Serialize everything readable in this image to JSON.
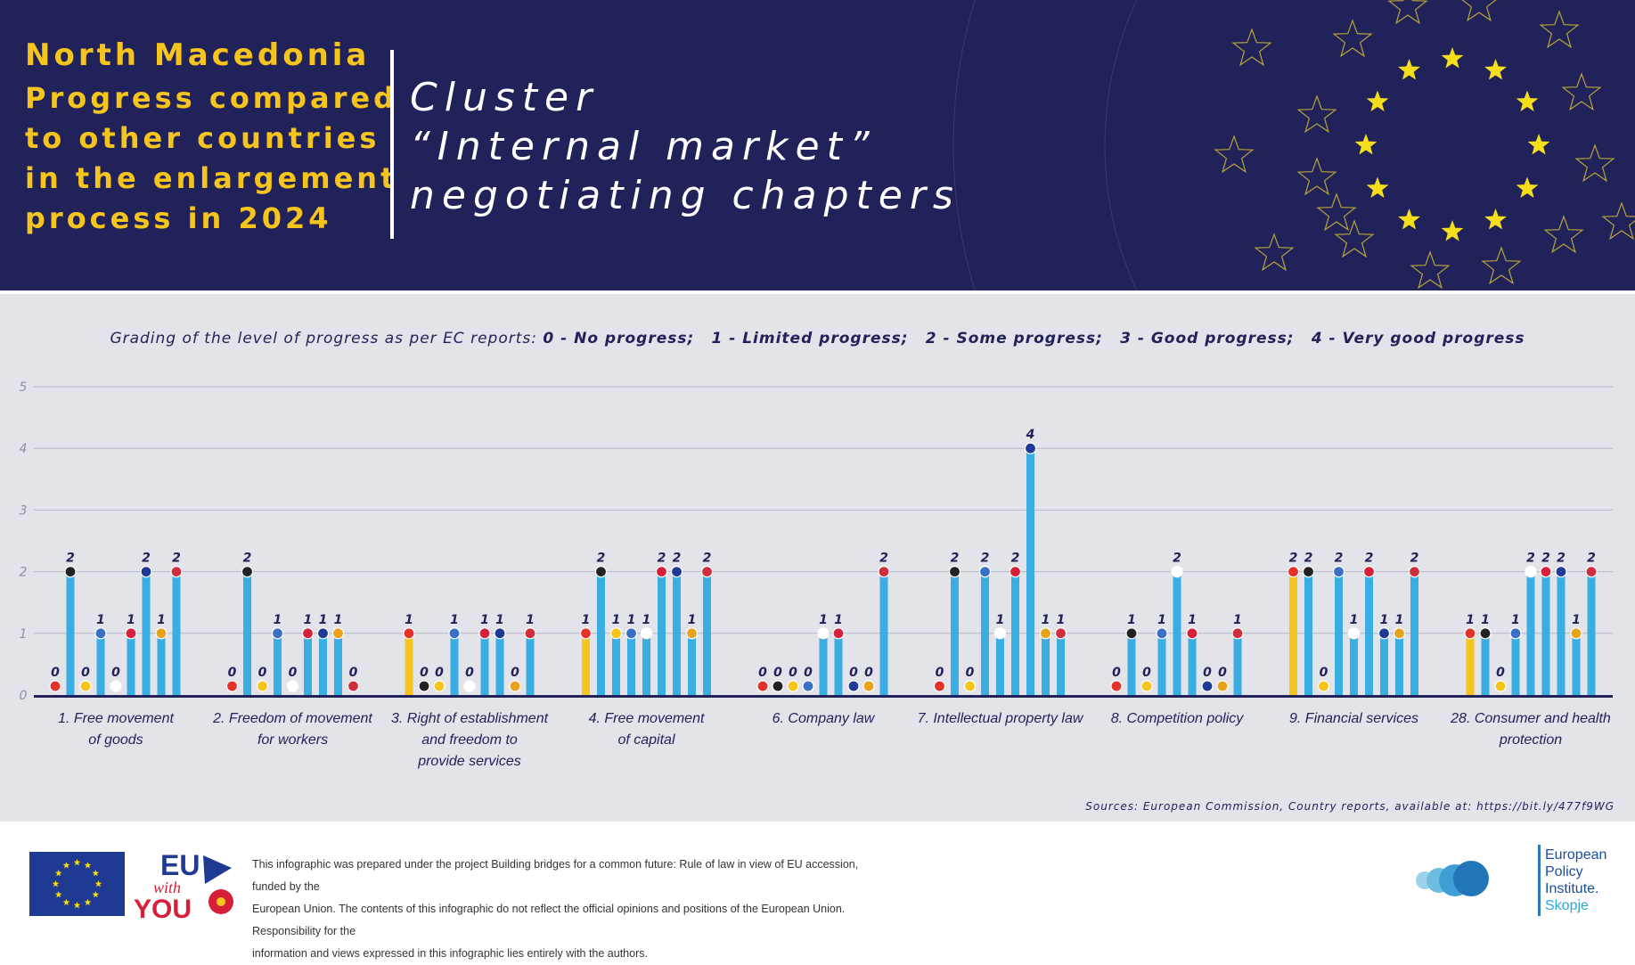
{
  "header": {
    "country": "North Macedonia",
    "subtitle_lines": [
      "Progress compared",
      "to other countries",
      "in the enlargement",
      "process in 2024"
    ],
    "cluster_lines": [
      "Cluster",
      "“Internal market”",
      "negotiating chapters"
    ]
  },
  "legend": {
    "prefix": "Grading of the level of progress as per EC reports:",
    "grades": [
      "0 - No progress;",
      "1 - Limited progress;",
      "2 - Some progress;",
      "3 - Good progress;",
      "4 - Very good progress"
    ]
  },
  "colors": {
    "header_bg": "#22225a",
    "title_yellow": "#f5c51d",
    "bar_blue": "#3aaee2",
    "bar_yellow": "#f5c51d",
    "chart_bg": "#e3e3ea",
    "axis": "#22225a"
  },
  "chart_data": {
    "type": "bar",
    "ylim": [
      0,
      5
    ],
    "yticks": [
      "0",
      "1",
      "2",
      "3",
      "4",
      "5"
    ],
    "highlight": "first bar of each group (yellow)",
    "groups": [
      {
        "label": [
          "1. Free movement",
          "of goods"
        ],
        "values": [
          0,
          2,
          0,
          1,
          0,
          1,
          2,
          1,
          2
        ]
      },
      {
        "label": [
          "2. Freedom of movement",
          "for workers"
        ],
        "values": [
          0,
          2,
          0,
          1,
          0,
          1,
          1,
          1,
          0
        ]
      },
      {
        "label": [
          "3. Right of establishment",
          "and freedom to",
          "provide services"
        ],
        "values": [
          1,
          0,
          0,
          1,
          0,
          1,
          1,
          0,
          1
        ]
      },
      {
        "label": [
          "4. Free movement",
          "of capital"
        ],
        "values": [
          1,
          2,
          1,
          1,
          1,
          2,
          2,
          1,
          2
        ]
      },
      {
        "label": [
          "6. Company law"
        ],
        "values": [
          0,
          0,
          0,
          0,
          1,
          1,
          0,
          0,
          2
        ]
      },
      {
        "label": [
          "7. Intellectual property law"
        ],
        "values": [
          0,
          2,
          0,
          2,
          1,
          2,
          4,
          1,
          1
        ]
      },
      {
        "label": [
          "8. Competition policy"
        ],
        "values": [
          0,
          1,
          0,
          1,
          2,
          1,
          0,
          0,
          1
        ]
      },
      {
        "label": [
          "9. Financial services"
        ],
        "values": [
          2,
          2,
          0,
          2,
          1,
          2,
          1,
          1,
          2
        ]
      },
      {
        "label": [
          "28. Consumer and health",
          "protection"
        ],
        "values": [
          1,
          1,
          0,
          1,
          2,
          2,
          2,
          1,
          2
        ]
      }
    ]
  },
  "source": "Sources: European Commission, Country reports, available at: https://bit.ly/477f9WG",
  "footer": {
    "euwy": [
      "EU",
      "with",
      "YOU"
    ],
    "disclaimer_lines": [
      "This infographic was prepared under the project Building bridges for a common future: Rule of law in view of EU accession, funded by the",
      "European Union. The contents of this infographic do not reflect the official opinions and positions of the European Union. Responsibility for the",
      "information and views expressed in this infographic lies entirely with the authors."
    ],
    "epi_lines": [
      "European",
      "Policy",
      "Institute.",
      "Skopje"
    ]
  }
}
